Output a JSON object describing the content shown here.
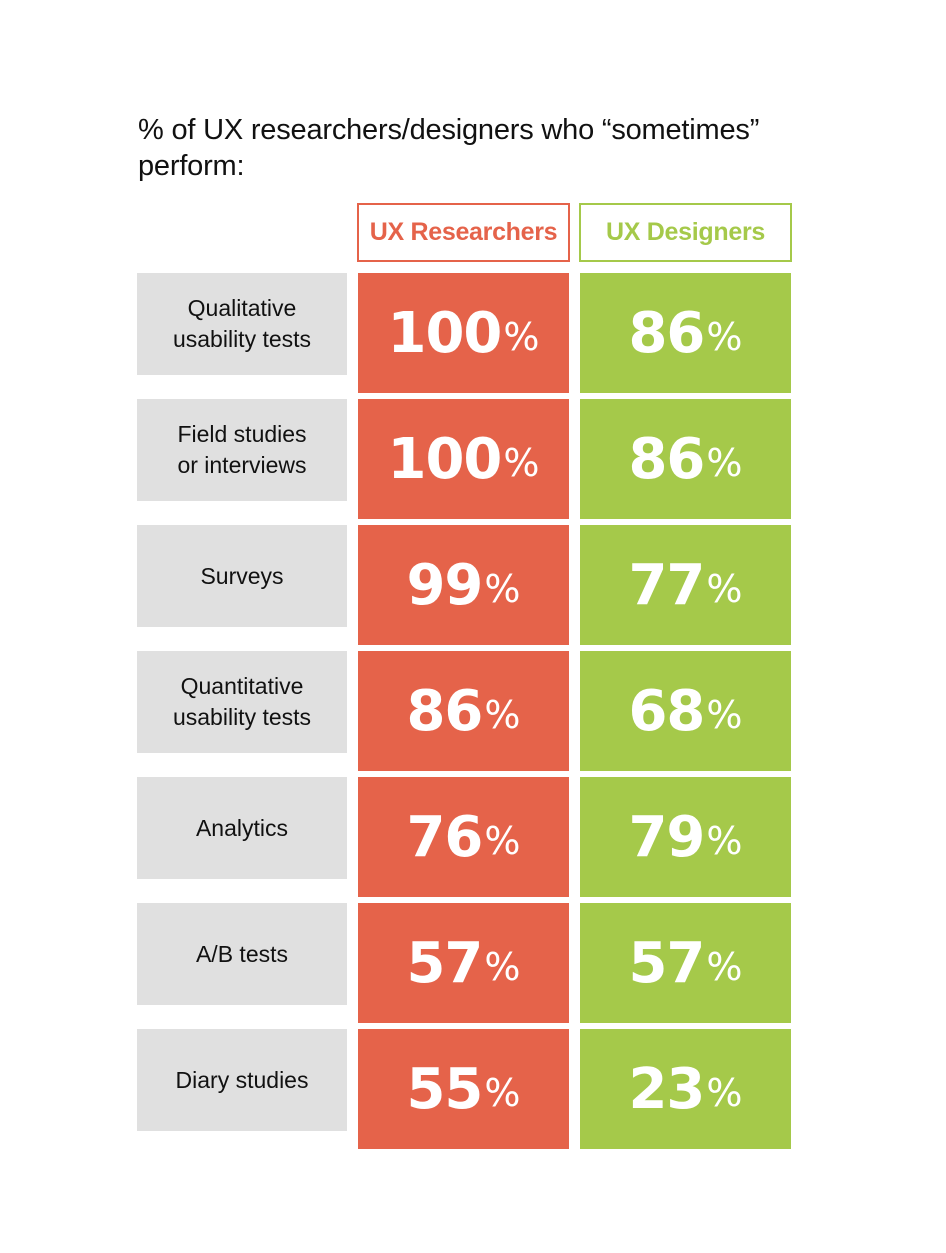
{
  "chart_data": {
    "type": "table",
    "title": "% of UX researchers/designers who “sometimes” perform:",
    "columns": [
      "UX Researchers",
      "UX Designers"
    ],
    "categories": [
      "Qualitative\nusability tests",
      "Field studies\nor interviews",
      "Surveys",
      "Quantitative\nusability tests",
      "Analytics",
      "A/B tests",
      "Diary studies"
    ],
    "series": [
      {
        "name": "UX Researchers",
        "values": [
          100,
          100,
          99,
          86,
          76,
          57,
          55
        ]
      },
      {
        "name": "UX Designers",
        "values": [
          86,
          86,
          77,
          68,
          79,
          57,
          23
        ]
      }
    ],
    "unit": "%",
    "colors": {
      "researchers": "#e5634a",
      "designers": "#a5c94a",
      "label_bg": "#e0e0e0"
    }
  }
}
